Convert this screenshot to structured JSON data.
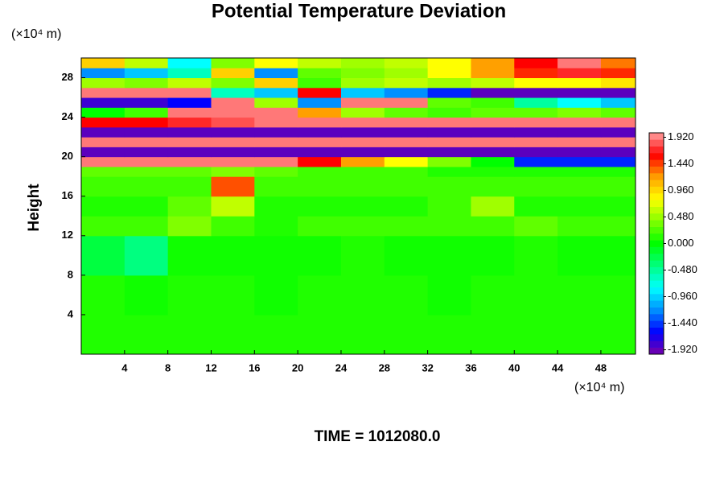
{
  "chart_data": {
    "type": "heatmap",
    "title": "Potential Temperature Deviation",
    "ylabel": "Height",
    "xunit": "(×10⁴ m)",
    "yunit": "(×10⁴ m)",
    "footer": "TIME = 1012080.0",
    "xlim": [
      0,
      51.2
    ],
    "ylim": [
      0,
      30
    ],
    "xticks": [
      4,
      8,
      12,
      16,
      20,
      24,
      28,
      32,
      36,
      40,
      44,
      48
    ],
    "yticks": [
      4,
      8,
      12,
      16,
      20,
      24,
      28
    ],
    "xbins": [
      0,
      4,
      8,
      12,
      16,
      20,
      24,
      28,
      32,
      36,
      40,
      44,
      48,
      51.2
    ],
    "ybins": [
      0,
      4,
      8,
      12,
      14,
      16,
      18,
      19,
      20,
      21,
      22,
      23,
      24,
      25,
      26,
      27,
      28,
      29,
      30
    ],
    "z": [
      [
        0.1,
        0.1,
        0.1,
        0.1,
        0.1,
        0.1,
        0.1,
        0.1,
        0.1,
        0.1,
        0.1,
        0.1,
        0.1
      ],
      [
        0.1,
        0.05,
        0.1,
        0.1,
        0.05,
        0.1,
        0.1,
        0.1,
        0.05,
        0.1,
        0.1,
        0.1,
        0.1
      ],
      [
        -0.2,
        -0.4,
        0.05,
        0.05,
        0.05,
        0.05,
        0.1,
        0.05,
        0.05,
        0.05,
        0.1,
        0.05,
        0.05
      ],
      [
        0.2,
        0.2,
        0.4,
        0.2,
        0.1,
        0.2,
        0.2,
        0.2,
        0.2,
        0.2,
        0.3,
        0.2,
        0.2
      ],
      [
        0.1,
        0.1,
        0.3,
        0.6,
        0.1,
        0.1,
        0.1,
        0.1,
        0.2,
        0.5,
        0.1,
        0.1,
        0.1
      ],
      [
        0.2,
        0.2,
        0.2,
        1.4,
        0.2,
        0.2,
        0.2,
        0.2,
        0.2,
        0.2,
        0.2,
        0.2,
        0.2
      ],
      [
        0.3,
        0.3,
        0.3,
        0.4,
        0.3,
        0.2,
        0.2,
        0.2,
        0.1,
        0.1,
        0.1,
        0.1,
        0.1
      ],
      [
        1.9,
        1.9,
        1.9,
        1.9,
        1.9,
        1.6,
        1.2,
        0.8,
        0.4,
        0,
        -1.5,
        -1.5,
        -1.5
      ],
      [
        -1.9,
        -1.9,
        -1.9,
        -1.9,
        -1.9,
        -1.9,
        -1.9,
        -1.9,
        -1.9,
        -1.9,
        -1.9,
        -1.9,
        -1.9
      ],
      [
        1.9,
        1.9,
        1.9,
        1.9,
        1.9,
        1.9,
        1.9,
        1.9,
        1.9,
        1.9,
        1.9,
        1.9,
        1.9
      ],
      [
        -1.9,
        -1.9,
        -1.9,
        -1.9,
        -1.9,
        -1.9,
        -1.9,
        -1.9,
        -1.9,
        -1.9,
        -1.9,
        -1.9,
        -1.9
      ],
      [
        1.6,
        1.6,
        1.7,
        1.8,
        1.9,
        1.9,
        1.9,
        1.9,
        1.9,
        1.9,
        1.9,
        1.9,
        1.9
      ],
      [
        0,
        0.2,
        1.9,
        1.9,
        1.9,
        1.2,
        0.5,
        0.3,
        0.2,
        0.3,
        0.3,
        0.4,
        0.3
      ],
      [
        -1.8,
        -1.8,
        -1.6,
        1.9,
        0.5,
        -1.2,
        1.9,
        1.9,
        0.3,
        0.2,
        -0.5,
        -0.8,
        -1.0
      ],
      [
        1.9,
        1.9,
        1.9,
        -0.6,
        -1.0,
        1.6,
        -1.0,
        -1.2,
        -1.5,
        -1.9,
        -1.9,
        -1.9,
        -1.9
      ],
      [
        0.5,
        0.4,
        0.6,
        0.4,
        1.0,
        0.2,
        0.5,
        0.6,
        0.5,
        0.6,
        0.8,
        0.8,
        0.9
      ],
      [
        -1.2,
        -1.0,
        -0.6,
        1.0,
        -1.2,
        0.3,
        0.4,
        0.5,
        0.8,
        1.2,
        1.5,
        1.7,
        1.5
      ],
      [
        1.0,
        0.6,
        -0.8,
        0.4,
        0.8,
        0.6,
        0.5,
        0.6,
        0.8,
        1.2,
        1.6,
        1.9,
        1.3
      ]
    ],
    "zlim": [
      -2,
      2
    ],
    "zticks": [
      {
        "value": 1.92,
        "label": "1.920"
      },
      {
        "value": 1.44,
        "label": "1.440"
      },
      {
        "value": 0.96,
        "label": "0.960"
      },
      {
        "value": 0.48,
        "label": "0.480"
      },
      {
        "value": 0,
        "label": "0.000"
      },
      {
        "value": -0.48,
        "label": "-0.480"
      },
      {
        "value": -0.96,
        "label": "-0.960"
      },
      {
        "value": -1.44,
        "label": "-1.440"
      },
      {
        "value": -1.92,
        "label": "-1.920"
      }
    ],
    "colorscale": [
      "#7a00a8",
      "#0000ff",
      "#0090ff",
      "#00ffff",
      "#00ff80",
      "#00ff00",
      "#80ff00",
      "#ffff00",
      "#ffa000",
      "#ff0000",
      "#ffa0a0"
    ]
  }
}
